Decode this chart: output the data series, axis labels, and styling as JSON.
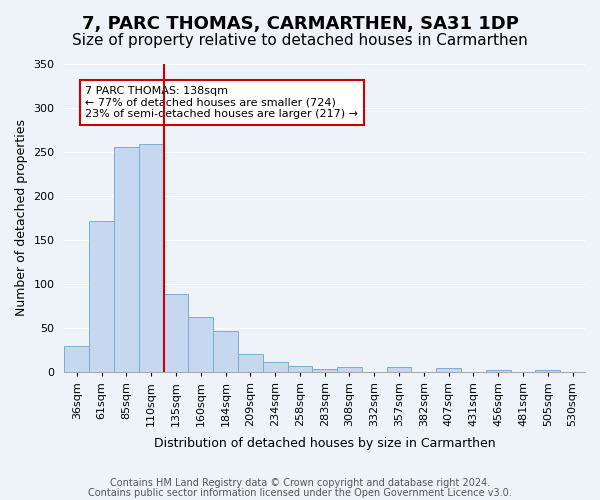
{
  "title": "7, PARC THOMAS, CARMARTHEN, SA31 1DP",
  "subtitle": "Size of property relative to detached houses in Carmarthen",
  "xlabel": "Distribution of detached houses by size in Carmarthen",
  "ylabel": "Number of detached properties",
  "bin_labels": [
    "36sqm",
    "61sqm",
    "85sqm",
    "110sqm",
    "135sqm",
    "160sqm",
    "184sqm",
    "209sqm",
    "234sqm",
    "258sqm",
    "283sqm",
    "308sqm",
    "332sqm",
    "357sqm",
    "382sqm",
    "407sqm",
    "431sqm",
    "456sqm",
    "481sqm",
    "505sqm",
    "530sqm"
  ],
  "bar_values": [
    29,
    172,
    256,
    259,
    89,
    62,
    46,
    20,
    11,
    7,
    3,
    5,
    0,
    5,
    0,
    4,
    0,
    2,
    0,
    2,
    0
  ],
  "bar_color": "#c5d8f0",
  "bar_edge_color": "#7aadd4",
  "vline_x_index": 4,
  "vline_color": "#cc0000",
  "ylim": [
    0,
    350
  ],
  "yticks": [
    0,
    50,
    100,
    150,
    200,
    250,
    300,
    350
  ],
  "annotation_title": "7 PARC THOMAS: 138sqm",
  "annotation_line1": "← 77% of detached houses are smaller (724)",
  "annotation_line2": "23% of semi-detached houses are larger (217) →",
  "annotation_box_color": "#ffffff",
  "annotation_box_edge": "#cc0000",
  "footer_line1": "Contains HM Land Registry data © Crown copyright and database right 2024.",
  "footer_line2": "Contains public sector information licensed under the Open Government Licence v3.0.",
  "background_color": "#eef3f9",
  "grid_color": "#ffffff",
  "title_fontsize": 13,
  "subtitle_fontsize": 11,
  "axis_label_fontsize": 9,
  "tick_fontsize": 8,
  "footer_fontsize": 7
}
